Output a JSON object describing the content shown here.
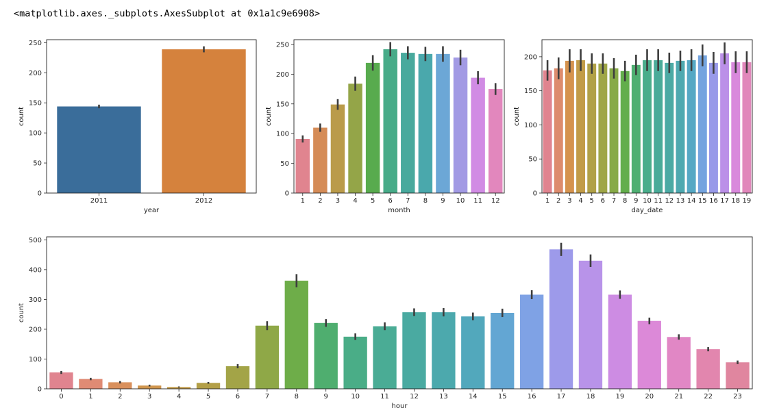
{
  "output_text": "<matplotlib.axes._subplots.AxesSubplot at 0x1a1c9e6908>",
  "chart_data": [
    {
      "type": "bar",
      "xlabel": "year",
      "ylabel": "count",
      "categories": [
        "2011",
        "2012"
      ],
      "values": [
        144,
        239
      ],
      "errors": [
        3,
        5
      ],
      "ylim": [
        0,
        255
      ],
      "yticks": [
        0,
        50,
        100,
        150,
        200,
        250
      ],
      "colors": [
        "#3a6d9a",
        "#d5823d"
      ]
    },
    {
      "type": "bar",
      "xlabel": "month",
      "ylabel": "count",
      "categories": [
        "1",
        "2",
        "3",
        "4",
        "5",
        "6",
        "7",
        "8",
        "9",
        "10",
        "11",
        "12"
      ],
      "values": [
        91,
        110,
        149,
        184,
        219,
        242,
        236,
        234,
        234,
        228,
        194,
        175
      ],
      "errors": [
        6,
        7,
        9,
        12,
        13,
        12,
        11,
        12,
        13,
        13,
        11,
        10
      ],
      "ylim": [
        0,
        258
      ],
      "yticks": [
        0,
        50,
        100,
        150,
        200,
        250
      ],
      "colors": [
        "#e0848f",
        "#d58c57",
        "#ba9b4a",
        "#94a548",
        "#58ab4e",
        "#47ab88",
        "#48a99d",
        "#4aa8ac",
        "#6ca7d6",
        "#a29ae4",
        "#d18be4",
        "#e287bd"
      ]
    },
    {
      "type": "bar",
      "xlabel": "day_date",
      "ylabel": "count",
      "categories": [
        "1",
        "2",
        "3",
        "4",
        "5",
        "6",
        "7",
        "8",
        "9",
        "10",
        "11",
        "12",
        "13",
        "14",
        "15",
        "16",
        "17",
        "18",
        "19"
      ],
      "values": [
        180,
        183,
        194,
        195,
        190,
        190,
        183,
        179,
        188,
        195,
        195,
        191,
        194,
        195,
        202,
        191,
        205,
        192,
        192
      ],
      "errors": [
        15,
        16,
        17,
        16,
        15,
        15,
        15,
        15,
        15,
        16,
        16,
        15,
        15,
        16,
        16,
        16,
        16,
        16,
        16
      ],
      "ylim": [
        0,
        225
      ],
      "yticks": [
        0,
        50,
        100,
        150,
        200
      ],
      "colors": [
        "#e0848f",
        "#dd8c6d",
        "#d5934e",
        "#c29c48",
        "#b1a147",
        "#9fa647",
        "#87aa47",
        "#63ae4c",
        "#4faf72",
        "#4aad8b",
        "#4aab99",
        "#4baaa4",
        "#4ea9b0",
        "#55a8c4",
        "#74a4df",
        "#989ae9",
        "#bb90e8",
        "#d989dc",
        "#e187bb"
      ]
    },
    {
      "type": "bar",
      "xlabel": "hour",
      "ylabel": "count",
      "categories": [
        "0",
        "1",
        "2",
        "3",
        "4",
        "5",
        "6",
        "7",
        "8",
        "9",
        "10",
        "11",
        "12",
        "13",
        "14",
        "15",
        "16",
        "17",
        "18",
        "19",
        "20",
        "21",
        "22",
        "23"
      ],
      "values": [
        55,
        33,
        22,
        11,
        6,
        20,
        76,
        212,
        363,
        221,
        175,
        210,
        257,
        257,
        243,
        255,
        316,
        468,
        430,
        316,
        228,
        174,
        133,
        89
      ],
      "errors": [
        5,
        4,
        4,
        3,
        2,
        3,
        7,
        15,
        22,
        13,
        11,
        13,
        13,
        14,
        13,
        14,
        15,
        22,
        21,
        14,
        11,
        9,
        7,
        6
      ],
      "ylim": [
        0,
        510
      ],
      "yticks": [
        0,
        100,
        200,
        300,
        400,
        500
      ],
      "colors": [
        "#e0848f",
        "#df8b74",
        "#d9905c",
        "#cf954d",
        "#c29b48",
        "#b39f47",
        "#a3a447",
        "#8fa847",
        "#6ead49",
        "#4fae6f",
        "#4aad87",
        "#4aac95",
        "#4aaaa1",
        "#4ca9ad",
        "#52a8bc",
        "#63a6d3",
        "#7fa2e5",
        "#9d9aea",
        "#b893e9",
        "#cd8ce3",
        "#dc89d8",
        "#e187c5",
        "#e286ae",
        "#e0869f"
      ]
    }
  ]
}
